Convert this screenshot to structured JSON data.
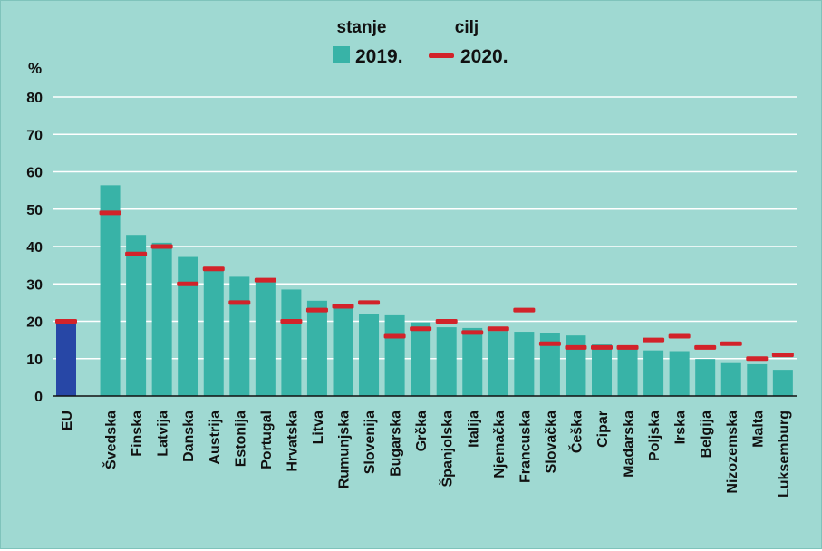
{
  "legend": {
    "status_head": "stanje",
    "status_year": "2019.",
    "target_head": "cilj",
    "target_year": "2020."
  },
  "y_unit": "%",
  "colors": {
    "background": "#9fd9d2",
    "bar": "#38b3a7",
    "eu_bar": "#2747a6",
    "target": "#d2232a",
    "grid": "#ffffff",
    "axis": "#111111"
  },
  "chart_data": {
    "type": "bar",
    "title": "",
    "xlabel": "",
    "ylabel": "%",
    "ylim": [
      0,
      80
    ],
    "yticks": [
      0,
      10,
      20,
      30,
      40,
      50,
      60,
      70,
      80
    ],
    "grid": true,
    "legend_position": "top-center",
    "categories": [
      "EU",
      "Švedska",
      "Finska",
      "Latvija",
      "Danska",
      "Austrija",
      "Estonija",
      "Portugal",
      "Hrvatska",
      "Litva",
      "Rumunjska",
      "Slovenija",
      "Bugarska",
      "Grčka",
      "Španjolska",
      "Italija",
      "Njemačka",
      "Francuska",
      "Slovačka",
      "Češka",
      "Cipar",
      "Mađarska",
      "Poljska",
      "Irska",
      "Belgija",
      "Nizozemska",
      "Malta",
      "Luksemburg"
    ],
    "series": [
      {
        "name": "stanje 2019.",
        "values": [
          19.7,
          56.4,
          43.1,
          41.0,
          37.2,
          33.6,
          31.9,
          30.6,
          28.5,
          25.5,
          24.3,
          21.9,
          21.6,
          19.7,
          18.4,
          18.2,
          17.4,
          17.2,
          16.9,
          16.2,
          13.8,
          12.6,
          12.2,
          12.0,
          9.9,
          8.8,
          8.5,
          7.0
        ]
      },
      {
        "name": "cilj 2020.",
        "values": [
          20,
          49,
          38,
          40,
          30,
          34,
          25,
          31,
          20,
          23,
          24,
          25,
          16,
          18,
          20,
          17,
          18,
          23,
          14,
          13,
          13,
          13,
          15,
          16,
          13,
          14,
          10,
          11
        ]
      }
    ]
  }
}
